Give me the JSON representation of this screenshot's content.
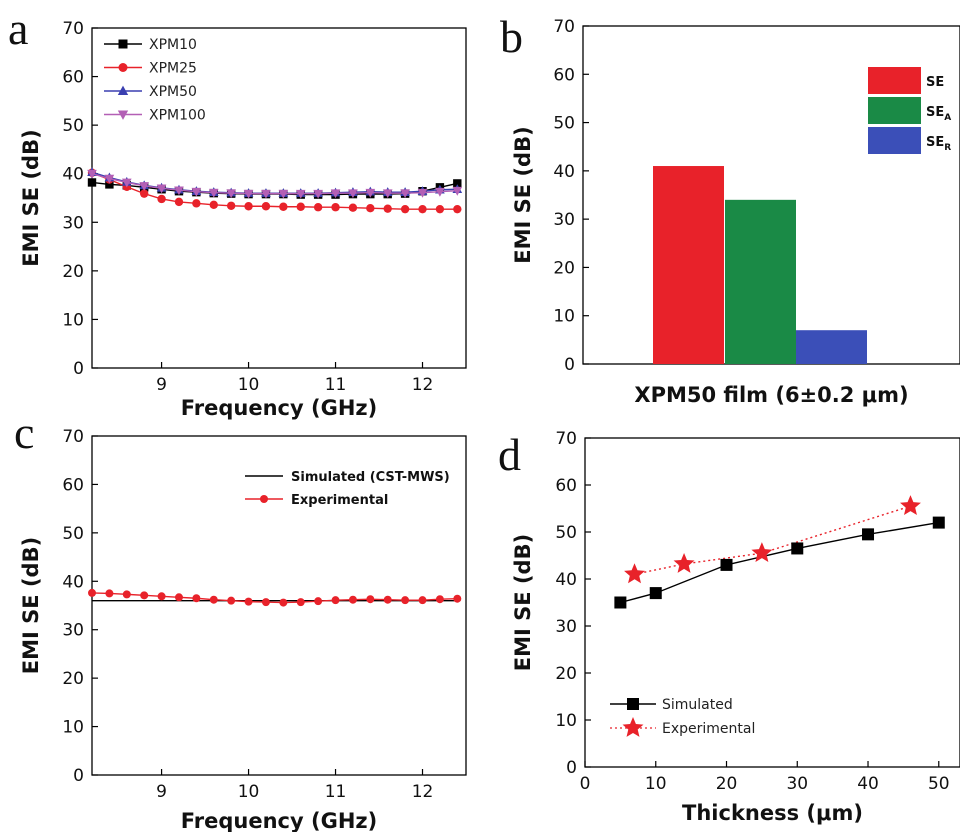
{
  "chart_data": [
    {
      "panel": "a",
      "type": "line",
      "xlabel": "Frequency (GHz)",
      "ylabel": "EMI SE (dB)",
      "xlim": [
        8.2,
        12.5
      ],
      "ylim": [
        0,
        70
      ],
      "xticks": [
        9,
        10,
        11,
        12
      ],
      "yticks": [
        0,
        10,
        20,
        30,
        40,
        50,
        60,
        70
      ],
      "legend_position": "top-left",
      "x": [
        8.2,
        8.4,
        8.6,
        8.8,
        9.0,
        9.2,
        9.4,
        9.6,
        9.8,
        10.0,
        10.2,
        10.4,
        10.6,
        10.8,
        11.0,
        11.2,
        11.4,
        11.6,
        11.8,
        12.0,
        12.2,
        12.4
      ],
      "series": [
        {
          "name": "XPM10",
          "color": "#000000",
          "marker": "square",
          "values": [
            38.2,
            37.8,
            37.6,
            37.2,
            36.8,
            36.4,
            36.2,
            36.0,
            35.9,
            35.8,
            35.8,
            35.8,
            35.7,
            35.7,
            35.7,
            35.8,
            35.8,
            35.8,
            35.9,
            36.4,
            37.2,
            38.0
          ]
        },
        {
          "name": "XPM25",
          "color": "#e8222a",
          "marker": "circle",
          "values": [
            40.2,
            38.8,
            37.3,
            35.9,
            34.8,
            34.2,
            33.9,
            33.6,
            33.4,
            33.3,
            33.3,
            33.2,
            33.2,
            33.1,
            33.1,
            33.0,
            32.9,
            32.8,
            32.7,
            32.7,
            32.7,
            32.7
          ]
        },
        {
          "name": "XPM50",
          "color": "#3a3fb0",
          "marker": "triangle-up",
          "values": [
            40.3,
            39.2,
            38.3,
            37.6,
            37.1,
            36.7,
            36.4,
            36.2,
            36.1,
            36.0,
            36.0,
            36.0,
            36.0,
            36.0,
            36.1,
            36.2,
            36.3,
            36.2,
            36.2,
            36.4,
            36.7,
            36.8
          ]
        },
        {
          "name": "XPM100",
          "color": "#b35fb5",
          "marker": "triangle-down",
          "values": [
            40.0,
            39.0,
            38.2,
            37.5,
            37.0,
            36.6,
            36.3,
            36.1,
            36.0,
            35.9,
            35.9,
            35.9,
            35.9,
            35.9,
            36.0,
            36.0,
            36.1,
            36.0,
            36.0,
            36.1,
            36.3,
            36.5
          ]
        }
      ]
    },
    {
      "panel": "b",
      "type": "bar",
      "xlabel": "XPM50 film (6±0.2 μm)",
      "ylabel": "EMI SE (dB)",
      "ylim": [
        0,
        70
      ],
      "yticks": [
        0,
        10,
        20,
        30,
        40,
        50,
        60,
        70
      ],
      "legend_position": "top-right",
      "categories": [
        "SE",
        "SEA",
        "SER"
      ],
      "legend": [
        {
          "base": "SE",
          "sub": "",
          "color": "#e8222a"
        },
        {
          "base": "SE",
          "sub": "A",
          "color": "#1a8a46"
        },
        {
          "base": "SE",
          "sub": "R",
          "color": "#3b4fb8"
        }
      ],
      "values": [
        41,
        34,
        7
      ]
    },
    {
      "panel": "c",
      "type": "line",
      "xlabel": "Frequency (GHz)",
      "ylabel": "EMI SE (dB)",
      "xlim": [
        8.2,
        12.5
      ],
      "ylim": [
        0,
        70
      ],
      "xticks": [
        9,
        10,
        11,
        12
      ],
      "yticks": [
        0,
        10,
        20,
        30,
        40,
        50,
        60,
        70
      ],
      "legend_position": "top-right",
      "series": [
        {
          "name": "Simulated (CST-MWS)",
          "color": "#000000",
          "marker": "none",
          "x": [
            8.2,
            12.4
          ],
          "values": [
            36.0,
            36.0
          ]
        },
        {
          "name": "Experimental",
          "color": "#e8222a",
          "marker": "circle",
          "x": [
            8.2,
            8.4,
            8.6,
            8.8,
            9.0,
            9.2,
            9.4,
            9.6,
            9.8,
            10.0,
            10.2,
            10.4,
            10.6,
            10.8,
            11.0,
            11.2,
            11.4,
            11.6,
            11.8,
            12.0,
            12.2,
            12.4
          ],
          "values": [
            37.6,
            37.5,
            37.3,
            37.1,
            36.9,
            36.7,
            36.5,
            36.2,
            36.0,
            35.8,
            35.7,
            35.6,
            35.7,
            35.9,
            36.1,
            36.2,
            36.3,
            36.2,
            36.1,
            36.1,
            36.3,
            36.4
          ]
        }
      ]
    },
    {
      "panel": "d",
      "type": "line",
      "xlabel": "Thickness (μm)",
      "ylabel": "EMI SE (dB)",
      "xlim": [
        0,
        53
      ],
      "ylim": [
        0,
        70
      ],
      "xticks": [
        0,
        10,
        20,
        30,
        40,
        50
      ],
      "yticks": [
        0,
        10,
        20,
        30,
        40,
        50,
        60,
        70
      ],
      "legend_position": "bottom-left",
      "series": [
        {
          "name": "Simulated",
          "color": "#000000",
          "marker": "square",
          "line": "solid",
          "x": [
            5,
            10,
            20,
            30,
            40,
            50
          ],
          "values": [
            35,
            37,
            43,
            46.5,
            49.5,
            52
          ]
        },
        {
          "name": "Experimental",
          "color": "#e8222a",
          "marker": "star",
          "line": "dotted",
          "x": [
            7,
            14,
            25,
            46
          ],
          "values": [
            41,
            43.2,
            45.5,
            55.5
          ]
        }
      ]
    }
  ],
  "panel_letters": {
    "a": "a",
    "b": "b",
    "c": "c",
    "d": "d"
  }
}
